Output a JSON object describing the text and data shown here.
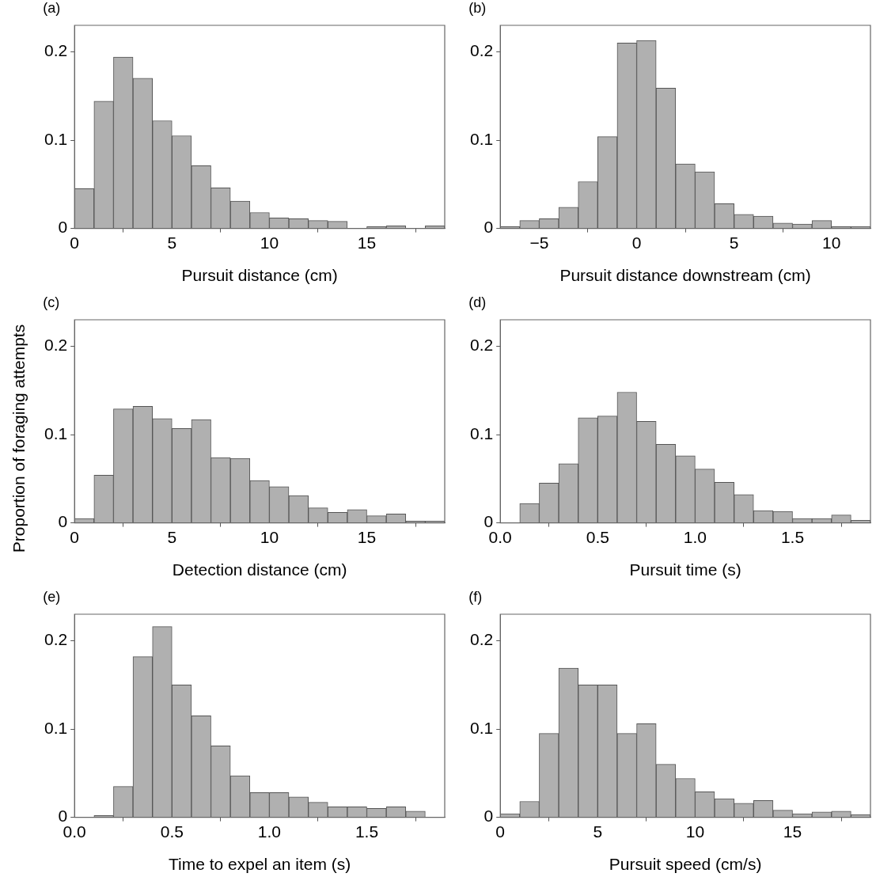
{
  "chart_data": [
    {
      "type": "histogram",
      "title": "(a)",
      "xlabel": "Pursuit distance (cm)",
      "color": "#b0b0b0",
      "bins": [
        0,
        1,
        2,
        3,
        4,
        5,
        6,
        7,
        8,
        9,
        10,
        11,
        12,
        13,
        14,
        15,
        16,
        17,
        18,
        19
      ],
      "values": [
        0.045,
        0.144,
        0.194,
        0.17,
        0.122,
        0.105,
        0.071,
        0.046,
        0.031,
        0.018,
        0.012,
        0.011,
        0.009,
        0.008,
        null,
        0.002,
        0.003,
        null,
        0.003
      ],
      "xlim": [
        0,
        19
      ],
      "xticks": [
        0,
        5,
        10,
        15
      ],
      "ylim": [
        0,
        0.23
      ],
      "yticks": [
        0,
        0.1,
        0.2
      ]
    },
    {
      "type": "histogram",
      "title": "(b)",
      "xlabel": "Pursuit distance downstream (cm)",
      "color": "#b0b0b0",
      "bins": [
        -7,
        -6,
        -5,
        -4,
        -3,
        -2,
        -1,
        0,
        1,
        2,
        3,
        4,
        5,
        6,
        7,
        8,
        9,
        10,
        11,
        12
      ],
      "values": [
        0.002,
        0.009,
        0.011,
        0.024,
        0.053,
        0.104,
        0.21,
        0.213,
        0.159,
        0.073,
        0.064,
        0.028,
        0.016,
        0.014,
        0.006,
        0.005,
        0.009,
        0.002,
        0.002
      ],
      "xlim": [
        -7,
        12
      ],
      "xticks": [
        {
          "value": -5,
          "label": "−5"
        },
        0,
        5,
        10
      ],
      "ylim": [
        0,
        0.23
      ],
      "yticks": [
        0,
        0.1,
        0.2
      ]
    },
    {
      "type": "histogram",
      "title": "(c)",
      "xlabel": "Detection distance (cm)",
      "ylabel": "Proportion of foraging attempts",
      "color": "#b0b0b0",
      "bins": [
        0,
        1,
        2,
        3,
        4,
        5,
        6,
        7,
        8,
        9,
        10,
        11,
        12,
        13,
        14,
        15,
        16,
        17,
        18,
        19
      ],
      "values": [
        0.005,
        0.054,
        0.129,
        0.132,
        0.118,
        0.107,
        0.117,
        0.074,
        0.073,
        0.048,
        0.041,
        0.031,
        0.017,
        0.012,
        0.015,
        0.008,
        0.01,
        0.002,
        0.002
      ],
      "xlim": [
        0,
        19
      ],
      "xticks": [
        0,
        5,
        10,
        15
      ],
      "ylim": [
        0,
        0.23
      ],
      "yticks": [
        0,
        0.1,
        0.2
      ]
    },
    {
      "type": "histogram",
      "title": "(d)",
      "xlabel": "Pursuit time (s)",
      "color": "#b0b0b0",
      "bins": [
        0.1,
        0.2,
        0.3,
        0.4,
        0.5,
        0.6,
        0.7,
        0.8,
        0.9,
        1.0,
        1.1,
        1.2,
        1.3,
        1.4,
        1.5,
        1.6,
        1.7,
        1.8,
        1.9
      ],
      "values": [
        0.022,
        0.045,
        0.067,
        0.119,
        0.121,
        0.148,
        0.115,
        0.089,
        0.076,
        0.061,
        0.046,
        0.032,
        0.014,
        0.013,
        0.005,
        0.005,
        0.009,
        0.003
      ],
      "xlim": [
        0,
        1.9
      ],
      "xticks": [
        {
          "value": 0,
          "label": "0.0"
        },
        0.5,
        {
          "value": 1,
          "label": "1.0"
        },
        1.5
      ],
      "ylim": [
        0,
        0.23
      ],
      "yticks": [
        0,
        0.1,
        0.2
      ]
    },
    {
      "type": "histogram",
      "title": "(e)",
      "xlabel": "Time to expel an item (s)",
      "color": "#b0b0b0",
      "bins": [
        0.1,
        0.2,
        0.3,
        0.4,
        0.5,
        0.6,
        0.7,
        0.8,
        0.9,
        1.0,
        1.1,
        1.2,
        1.3,
        1.4,
        1.5,
        1.6,
        1.7,
        1.8
      ],
      "values": [
        0.002,
        0.035,
        0.182,
        0.216,
        0.15,
        0.115,
        0.081,
        0.047,
        0.028,
        0.028,
        0.023,
        0.017,
        0.012,
        0.012,
        0.01,
        0.012,
        0.007
      ],
      "xlim": [
        0,
        1.9
      ],
      "xticks": [
        {
          "value": 0,
          "label": "0.0"
        },
        0.5,
        {
          "value": 1,
          "label": "1.0"
        },
        1.5
      ],
      "ylim": [
        0,
        0.23
      ],
      "yticks": [
        0,
        0.1,
        0.2
      ]
    },
    {
      "type": "histogram",
      "title": "(f)",
      "xlabel": "Pursuit speed (cm/s)",
      "color": "#b0b0b0",
      "bins": [
        0,
        1,
        2,
        3,
        4,
        5,
        6,
        7,
        8,
        9,
        10,
        11,
        12,
        13,
        14,
        15,
        16,
        17,
        18,
        19
      ],
      "values": [
        0.004,
        0.018,
        0.095,
        0.169,
        0.15,
        0.15,
        0.095,
        0.106,
        0.06,
        0.044,
        0.029,
        0.021,
        0.016,
        0.019,
        0.008,
        0.004,
        0.006,
        0.007,
        0.003
      ],
      "xlim": [
        0,
        19
      ],
      "xticks": [
        0,
        5,
        10,
        15
      ],
      "ylim": [
        0,
        0.23
      ],
      "yticks": [
        0,
        0.1,
        0.2
      ]
    }
  ]
}
